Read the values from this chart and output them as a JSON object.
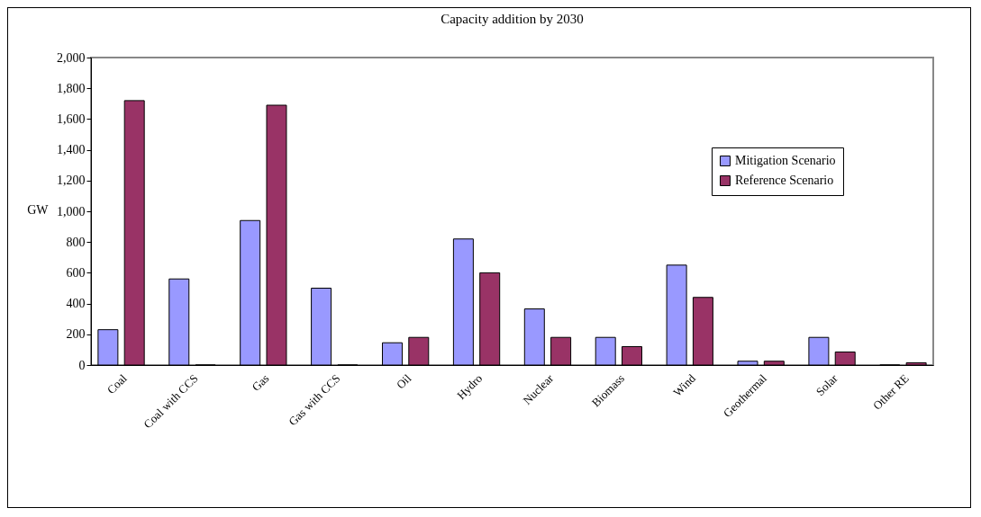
{
  "chart_data": {
    "type": "bar",
    "title": "Capacity addition by 2030",
    "ylabel": "GW",
    "categories": [
      "Coal",
      "Coal with CCS",
      "Gas",
      "Gas with CCS",
      "Oil",
      "Hydro",
      "Nuclear",
      "Biomass",
      "Wind",
      "Geothermal",
      "Solar",
      "Other RE"
    ],
    "series": [
      {
        "name": "Mitigation Scenario",
        "color": "#9999ff",
        "values": [
          230,
          560,
          940,
          500,
          145,
          820,
          365,
          180,
          650,
          25,
          180,
          0
        ]
      },
      {
        "name": "Reference Scenario",
        "color": "#993366",
        "values": [
          1720,
          0,
          1690,
          0,
          180,
          600,
          180,
          120,
          440,
          25,
          85,
          15
        ]
      }
    ],
    "ylim": [
      0,
      2000
    ],
    "yticks": [
      0,
      200,
      400,
      600,
      800,
      {
        "value": 1000,
        "label": "1,000"
      },
      {
        "value": 1200,
        "label": "1,200"
      },
      {
        "value": 1400,
        "label": "1,400"
      },
      {
        "value": 1600,
        "label": "1,600"
      },
      {
        "value": 1800,
        "label": "1,800"
      },
      {
        "value": 2000,
        "label": "2,000"
      }
    ],
    "grid": false,
    "legend": "top right"
  }
}
